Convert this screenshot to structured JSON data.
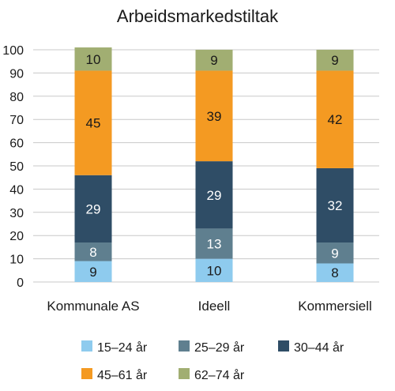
{
  "chart_data": {
    "type": "bar",
    "stacked": true,
    "title": "Arbeidsmarkedstiltak",
    "xlabel": "",
    "ylabel": "",
    "ylim": [
      0,
      100
    ],
    "yticks": [
      0,
      10,
      20,
      30,
      40,
      50,
      60,
      70,
      80,
      90,
      100
    ],
    "grid": true,
    "legend_position": "bottom",
    "categories": [
      "Kommunale AS",
      "Ideell",
      "Kommersiell"
    ],
    "series": [
      {
        "name": "15–24 år",
        "color": "#8ecbee",
        "label_color": "#1a1a1a",
        "values": [
          9,
          10,
          8
        ]
      },
      {
        "name": "25–29 år",
        "color": "#5f7f8f",
        "label_color": "#ffffff",
        "values": [
          8,
          13,
          9
        ]
      },
      {
        "name": "30–44 år",
        "color": "#2f4d66",
        "label_color": "#ffffff",
        "values": [
          29,
          29,
          32
        ]
      },
      {
        "name": "45–61 år",
        "color": "#f49a22",
        "label_color": "#1a1a1a",
        "values": [
          45,
          39,
          42
        ]
      },
      {
        "name": "62–74 år",
        "color": "#a1ae72",
        "label_color": "#1a1a1a",
        "values": [
          10,
          9,
          9
        ]
      }
    ]
  }
}
